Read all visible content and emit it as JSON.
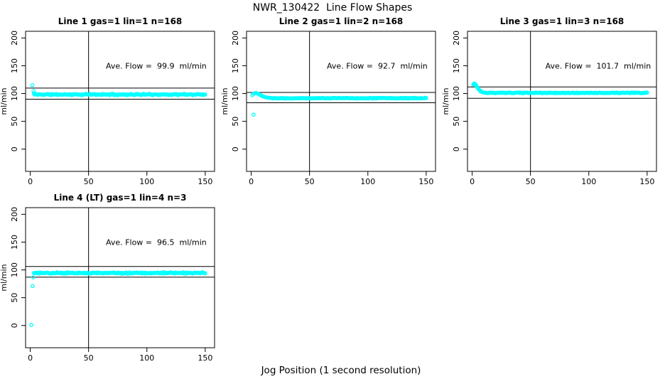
{
  "header": {
    "title": "NWR_130422  Line Flow Shapes"
  },
  "footer": {
    "xlabel": "Jog Position (1 second resolution)"
  },
  "colors": {
    "points": "#00ffff",
    "axis": "#000000",
    "text": "#000000",
    "background": "#ffffff"
  },
  "chart_data": [
    {
      "type": "scatter",
      "title": "Line 1 gas=1 lin=1 n=168",
      "annotation": "Ave. Flow =  99.9  ml/min",
      "ave_flow_ml_min": 99.9,
      "n_points": 168,
      "ylabel": "ml/min",
      "xlim": [
        -4,
        158
      ],
      "ylim": [
        -40,
        212
      ],
      "x_ticks": [
        0,
        50,
        100,
        150
      ],
      "y_ticks": [
        0,
        50,
        100,
        150,
        200
      ],
      "vline_x": 50,
      "hlines": [
        109.9,
        89.9
      ],
      "points_transient": [
        [
          1.8,
          115
        ],
        [
          2.8,
          104.5
        ],
        [
          3.2,
          100.5
        ]
      ],
      "outliers": [],
      "band": {
        "x_from": 3.5,
        "x_to": 150,
        "mean": 98.3,
        "jitter": 1.5,
        "seed": 11
      }
    },
    {
      "type": "scatter",
      "title": "Line 2 gas=1 lin=2 n=168",
      "annotation": "Ave. Flow =  92.7  ml/min",
      "ave_flow_ml_min": 92.7,
      "n_points": 168,
      "ylabel": "ml/min",
      "xlim": [
        -4,
        158
      ],
      "ylim": [
        -40,
        212
      ],
      "x_ticks": [
        0,
        50,
        100,
        150
      ],
      "y_ticks": [
        0,
        50,
        100,
        150,
        200
      ],
      "vline_x": 50,
      "hlines": [
        102.0,
        83.4
      ],
      "points_transient": [
        [
          1,
          97
        ],
        [
          2,
          99.5
        ],
        [
          3,
          100.6
        ],
        [
          4,
          100.9
        ],
        [
          5,
          100.4
        ],
        [
          6,
          99.5
        ],
        [
          7,
          98.3
        ],
        [
          8,
          97.1
        ],
        [
          9,
          96.0
        ],
        [
          10,
          95.0
        ],
        [
          11,
          94.2
        ],
        [
          12,
          93.6
        ],
        [
          13,
          93.1
        ],
        [
          14,
          92.7
        ],
        [
          15,
          92.4
        ],
        [
          16,
          92.2
        ],
        [
          17,
          92.0
        ]
      ],
      "outliers": [
        [
          2,
          62
        ]
      ],
      "band": {
        "x_from": 18,
        "x_to": 150,
        "mean": 91.7,
        "jitter": 0.9,
        "seed": 22
      }
    },
    {
      "type": "scatter",
      "title": "Line 3 gas=1 lin=3 n=168",
      "annotation": "Ave. Flow =  101.7  ml/min",
      "ave_flow_ml_min": 101.7,
      "n_points": 168,
      "ylabel": "ml/min",
      "xlim": [
        -4,
        158
      ],
      "ylim": [
        -40,
        212
      ],
      "x_ticks": [
        0,
        50,
        100,
        150
      ],
      "y_ticks": [
        0,
        50,
        100,
        150,
        200
      ],
      "vline_x": 50,
      "hlines": [
        111.9,
        91.5
      ],
      "points_transient": [
        [
          1,
          116
        ],
        [
          1.5,
          117.5
        ],
        [
          2,
          118
        ],
        [
          2.5,
          117.2
        ],
        [
          3,
          115.8
        ],
        [
          3.5,
          114.2
        ],
        [
          4,
          112.6
        ],
        [
          4.5,
          111.0
        ],
        [
          5,
          109.5
        ],
        [
          5.5,
          108.0
        ],
        [
          6,
          106.8
        ],
        [
          6.5,
          105.6
        ],
        [
          7,
          104.6
        ],
        [
          7.5,
          103.8
        ],
        [
          8,
          103.1
        ],
        [
          9,
          102.3
        ],
        [
          10,
          101.8
        ],
        [
          11,
          101.5
        ]
      ],
      "outliers": [],
      "band": {
        "x_from": 12,
        "x_to": 150,
        "mean": 101.2,
        "jitter": 0.85,
        "seed": 33
      }
    },
    {
      "type": "scatter",
      "title": "Line 4 (LT) gas=1 lin=4 n=3",
      "annotation": "Ave. Flow =  96.5  ml/min",
      "ave_flow_ml_min": 96.5,
      "n_points": 3,
      "ylabel": "ml/min",
      "xlim": [
        -4,
        158
      ],
      "ylim": [
        -40,
        212
      ],
      "x_ticks": [
        0,
        50,
        100,
        150
      ],
      "y_ticks": [
        0,
        50,
        100,
        150,
        200
      ],
      "vline_x": 50,
      "hlines": [
        106.2,
        86.9
      ],
      "points_transient": [],
      "outliers": [
        [
          1,
          1
        ],
        [
          2,
          71
        ],
        [
          2.5,
          86.5
        ]
      ],
      "band": {
        "x_from": 3,
        "x_to": 150,
        "mean": 94.4,
        "jitter": 1.6,
        "seed": 44
      }
    }
  ]
}
